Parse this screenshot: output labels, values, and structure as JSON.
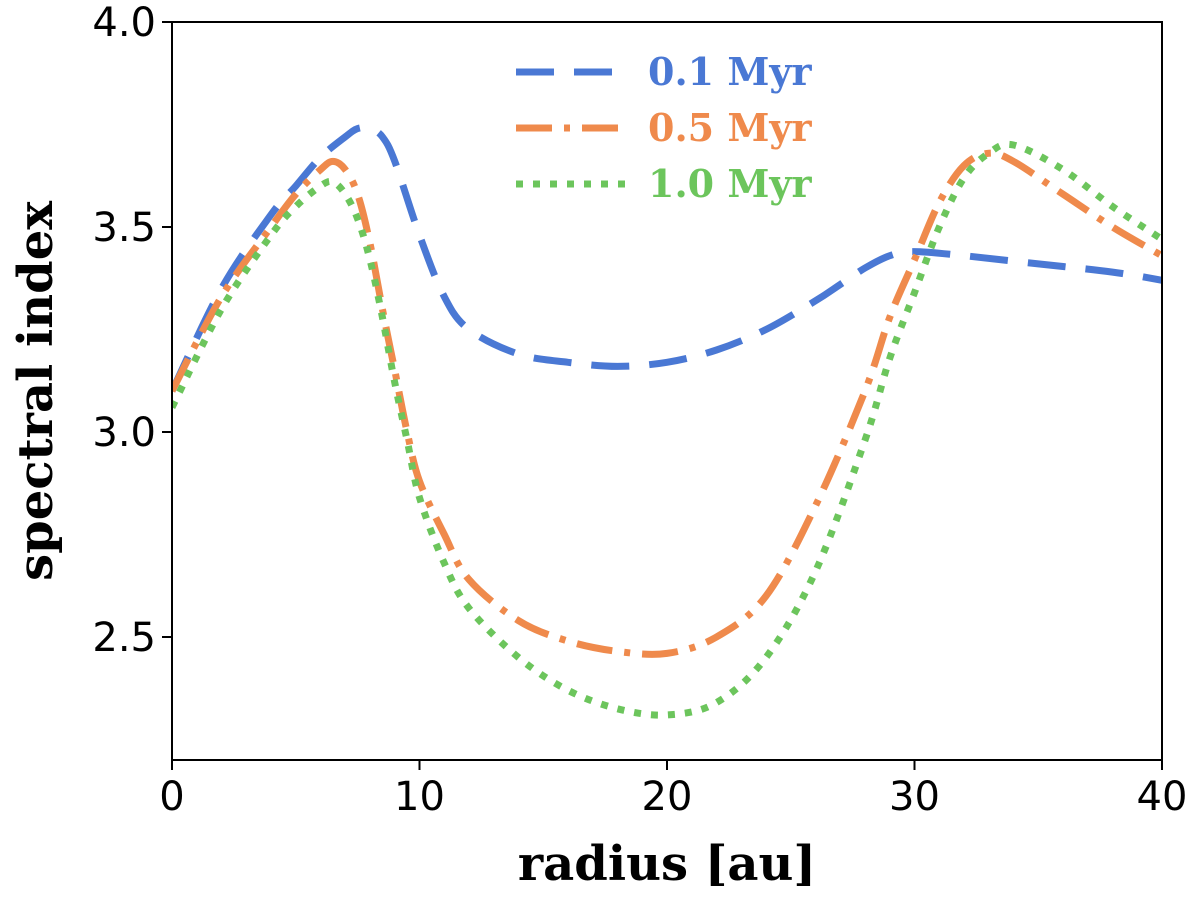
{
  "chart_data": {
    "type": "line",
    "xlabel": "radius [au]",
    "ylabel": "spectral index",
    "xlim": [
      0,
      40
    ],
    "ylim": [
      2.2,
      4.0
    ],
    "xticks": [
      "0",
      "10",
      "20",
      "30",
      "40"
    ],
    "yticks": [
      "2.5",
      "3.0",
      "3.5",
      "4.0"
    ],
    "xtick_values": [
      0,
      10,
      20,
      30,
      40
    ],
    "ytick_values": [
      2.5,
      3.0,
      3.5,
      4.0
    ],
    "legend_position": "top-center",
    "grid": false,
    "series": [
      {
        "name": "0.1 Myr",
        "color": "#4a78d4",
        "style": "dashed",
        "x": [
          0,
          2,
          4,
          5,
          6,
          7,
          7.5,
          8,
          8.5,
          9,
          10,
          11,
          12,
          14,
          16,
          18,
          20,
          22,
          24,
          26,
          27,
          28,
          29,
          30,
          32,
          35,
          38,
          40
        ],
        "y": [
          3.1,
          3.35,
          3.53,
          3.6,
          3.67,
          3.72,
          3.74,
          3.74,
          3.72,
          3.66,
          3.48,
          3.33,
          3.25,
          3.19,
          3.17,
          3.16,
          3.17,
          3.2,
          3.25,
          3.32,
          3.36,
          3.4,
          3.43,
          3.44,
          3.43,
          3.41,
          3.39,
          3.37
        ]
      },
      {
        "name": "0.5 Myr",
        "color": "#ef8a4c",
        "style": "dashdot",
        "x": [
          0,
          2,
          4,
          5,
          6,
          6.5,
          7,
          7.5,
          8,
          8.5,
          9,
          9.5,
          10,
          11,
          12,
          14,
          16,
          18,
          20,
          22,
          24,
          26,
          28,
          29,
          30,
          31,
          32,
          33,
          34,
          36,
          38,
          40
        ],
        "y": [
          3.1,
          3.33,
          3.5,
          3.58,
          3.64,
          3.66,
          3.64,
          3.58,
          3.46,
          3.3,
          3.15,
          3.0,
          2.88,
          2.75,
          2.64,
          2.54,
          2.49,
          2.465,
          2.46,
          2.5,
          2.6,
          2.82,
          3.1,
          3.28,
          3.42,
          3.56,
          3.65,
          3.68,
          3.66,
          3.58,
          3.5,
          3.43
        ]
      },
      {
        "name": "1.0 Myr",
        "color": "#6cc55c",
        "style": "dotted",
        "x": [
          0,
          2,
          4,
          5,
          6,
          6.5,
          7,
          7.5,
          8,
          8.5,
          9,
          9.5,
          10,
          11,
          12,
          14,
          16,
          18,
          20,
          22,
          24,
          26,
          28,
          29,
          30,
          31,
          32,
          33,
          34,
          36,
          38,
          40
        ],
        "y": [
          3.06,
          3.3,
          3.48,
          3.55,
          3.6,
          3.61,
          3.58,
          3.52,
          3.42,
          3.28,
          3.12,
          2.98,
          2.84,
          2.68,
          2.57,
          2.45,
          2.37,
          2.325,
          2.31,
          2.34,
          2.45,
          2.66,
          2.98,
          3.18,
          3.34,
          3.5,
          3.62,
          3.68,
          3.7,
          3.64,
          3.55,
          3.47
        ]
      }
    ]
  }
}
